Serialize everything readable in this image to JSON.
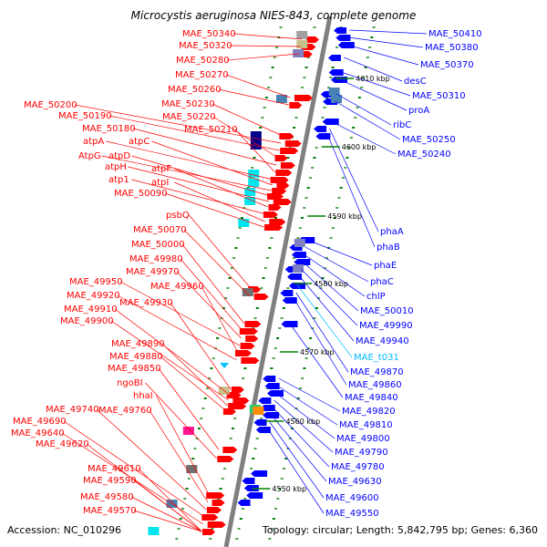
{
  "title": "Microcystis aeruginosa NIES-843, complete genome",
  "footer": {
    "accession": "Accession: NC_010296",
    "summary": "Topology: circular; Length: 5,842,795 bp; Genes: 6,360"
  },
  "colors": {
    "forward_gene": "#ff0000",
    "reverse_gene": "#0000ff",
    "rna_gene": "#00bfff",
    "backbone": "#808080",
    "tick": "#008000"
  },
  "kbp_labels": [
    "4610 kbp",
    "4600 kbp",
    "4590 kbp",
    "4580 kbp",
    "4570 kbp",
    "4560 kbp",
    "4550 kbp"
  ],
  "left_labels": [
    "MAE_50340",
    "MAE_50320",
    "MAE_50280",
    "MAE_50270",
    "MAE_50260",
    "MAE_50230",
    "MAE_50200",
    "MAE_50190",
    "MAE_50220",
    "MAE_50180",
    "MAE_50210",
    "atpA",
    "atpC",
    "AtpG",
    "atpD",
    "atpH",
    "atpF",
    "atp1",
    "atpI",
    "MAE_50090",
    "psbQ",
    "MAE_50070",
    "MAE_50000",
    "MAE_49980",
    "MAE_49970",
    "MAE_49950",
    "MAE_49960",
    "MAE_49920",
    "MAE_49930",
    "MAE_49910",
    "MAE_49900",
    "MAE_49890",
    "MAE_49880",
    "MAE_49850",
    "ngoBI",
    "hhaI",
    "MAE_49760",
    "MAE_49740",
    "MAE_49690",
    "MAE_49640",
    "MAE_49620",
    "MAE_49610",
    "MAE_49590",
    "MAE_49580",
    "MAE_49570"
  ],
  "right_labels": [
    "MAE_50410",
    "MAE_50380",
    "MAE_50370",
    "desC",
    "MAE_50310",
    "proA",
    "ribC",
    "MAE_50250",
    "MAE_50240",
    "phaA",
    "phaB",
    "phaE",
    "phaC",
    "chlP",
    "MAE_50010",
    "MAE_49990",
    "MAE_49940",
    "MAE_t031",
    "MAE_49870",
    "MAE_49860",
    "MAE_49840",
    "MAE_49820",
    "MAE_49810",
    "MAE_49800",
    "MAE_49790",
    "MAE_49780",
    "MAE_49630",
    "MAE_49600",
    "MAE_49550"
  ]
}
